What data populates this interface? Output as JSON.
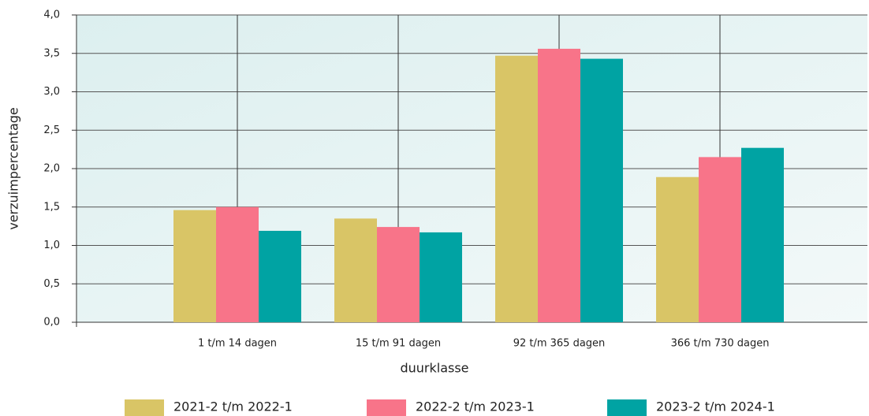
{
  "chart_data": {
    "type": "bar",
    "categories": [
      "1 t/m 14 dagen",
      "15 t/m 91 dagen",
      "92 t/m 365 dagen",
      "366 t/m 730 dagen"
    ],
    "series": [
      {
        "name": "2021-2 t/m 2022-1",
        "color": "#d9c566",
        "values": [
          1.46,
          1.35,
          3.47,
          1.89
        ]
      },
      {
        "name": "2022-2 t/m 2023-1",
        "color": "#f87489",
        "values": [
          1.5,
          1.24,
          3.56,
          2.15
        ]
      },
      {
        "name": "2023-2 t/m 2024-1",
        "color": "#00a3a3",
        "values": [
          1.19,
          1.17,
          3.43,
          2.27
        ]
      }
    ],
    "xlabel": "duurklasse",
    "ylabel": "verzuimpercentage",
    "ylim": [
      0,
      4
    ],
    "yticks": [
      {
        "value": 0,
        "label": "0,0"
      },
      {
        "value": 0.5,
        "label": "0,5"
      },
      {
        "value": 1,
        "label": "1,0"
      },
      {
        "value": 1.5,
        "label": "1,5"
      },
      {
        "value": 2,
        "label": "2,0"
      },
      {
        "value": 2.5,
        "label": "2,5"
      },
      {
        "value": 3,
        "label": "3,0"
      },
      {
        "value": 3.5,
        "label": "3,5"
      },
      {
        "value": 4,
        "label": "4,0"
      }
    ],
    "grid": true,
    "legend": "bottom"
  }
}
